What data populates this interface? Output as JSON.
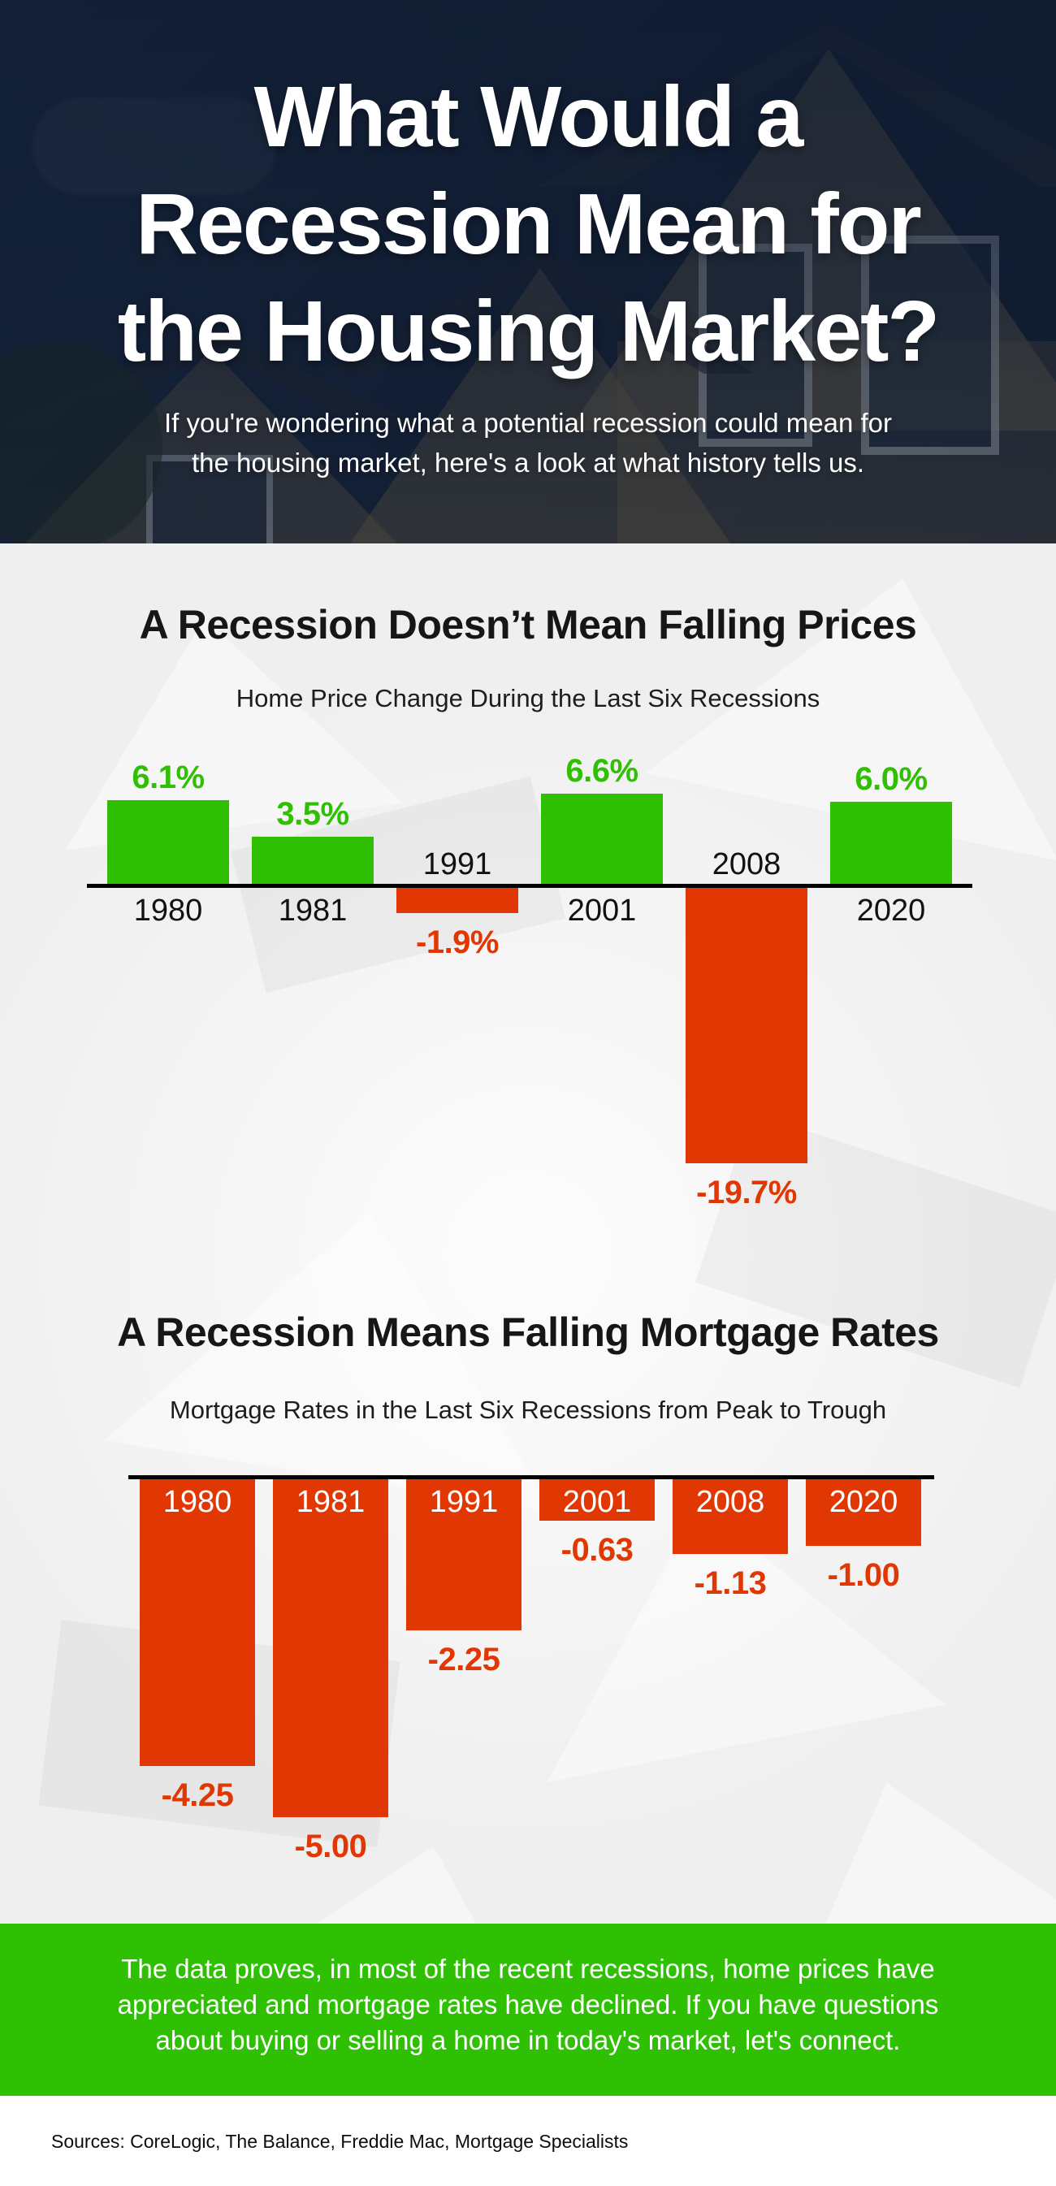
{
  "header": {
    "title_lines": [
      "What Would a",
      "Recession Mean for",
      "the Housing Market?"
    ],
    "subtitle_lines": [
      "If you're wondering what a potential recession could mean for",
      "the housing market, here's a look at what history tells us."
    ]
  },
  "sections": {
    "prices": {
      "heading": "A Recession Doesn’t Mean Falling Prices",
      "subheading": "Home Price Change During the Last Six Recessions"
    },
    "rates": {
      "heading": "A Recession Means Falling Mortgage Rates",
      "subheading": "Mortgage Rates in the Last Six Recessions from Peak to Trough"
    }
  },
  "chart_data": [
    {
      "type": "bar",
      "title": "Home Price Change During the Last Six Recessions",
      "categories": [
        "1980",
        "1981",
        "1991",
        "2001",
        "2008",
        "2020"
      ],
      "values": [
        6.1,
        3.5,
        -1.9,
        6.6,
        -19.7,
        6.0
      ],
      "value_labels": [
        "6.1%",
        "3.5%",
        "-1.9%",
        "6.6%",
        "-19.7%",
        "6.0%"
      ],
      "positive_color": "#2fc004",
      "negative_color": "#e13703",
      "xlabel": "",
      "ylabel": "",
      "ylim": [
        -20,
        7
      ],
      "baseline": "zero line drawn in black, year labels opposite side of each bar",
      "grid": "off",
      "legend": "none"
    },
    {
      "type": "bar",
      "title": "Mortgage Rates in the Last Six Recessions from Peak to Trough",
      "categories": [
        "1980",
        "1981",
        "1991",
        "2001",
        "2008",
        "2020"
      ],
      "values": [
        -4.25,
        -5.0,
        -2.25,
        -0.63,
        -1.13,
        -1.0
      ],
      "value_labels": [
        "-4.25",
        "-5.00",
        "-2.25",
        "-0.63",
        "-1.13",
        "-1.00"
      ],
      "positive_color": "#2fc004",
      "negative_color": "#e13703",
      "xlabel": "",
      "ylabel": "",
      "ylim": [
        -5.5,
        0
      ],
      "baseline": "zero line drawn in black, year labels in white inside tops of bars",
      "grid": "off",
      "legend": "none"
    }
  ],
  "band": {
    "lines": [
      "The data proves, in most of the recent recessions, home prices have",
      "appreciated and mortgage rates have declined. If you have questions",
      "about buying or selling a home in today's market, let's connect."
    ],
    "background_color": "#2fc004"
  },
  "sources": {
    "text": "Sources: CoreLogic, The Balance, Freddie Mac, Mortgage Specialists"
  },
  "colors": {
    "positive_green": "#2fc004",
    "negative_red": "#e13703",
    "hero_navy": "#16233a",
    "body_gray": "#efeff0",
    "heading_black": "#161616"
  }
}
